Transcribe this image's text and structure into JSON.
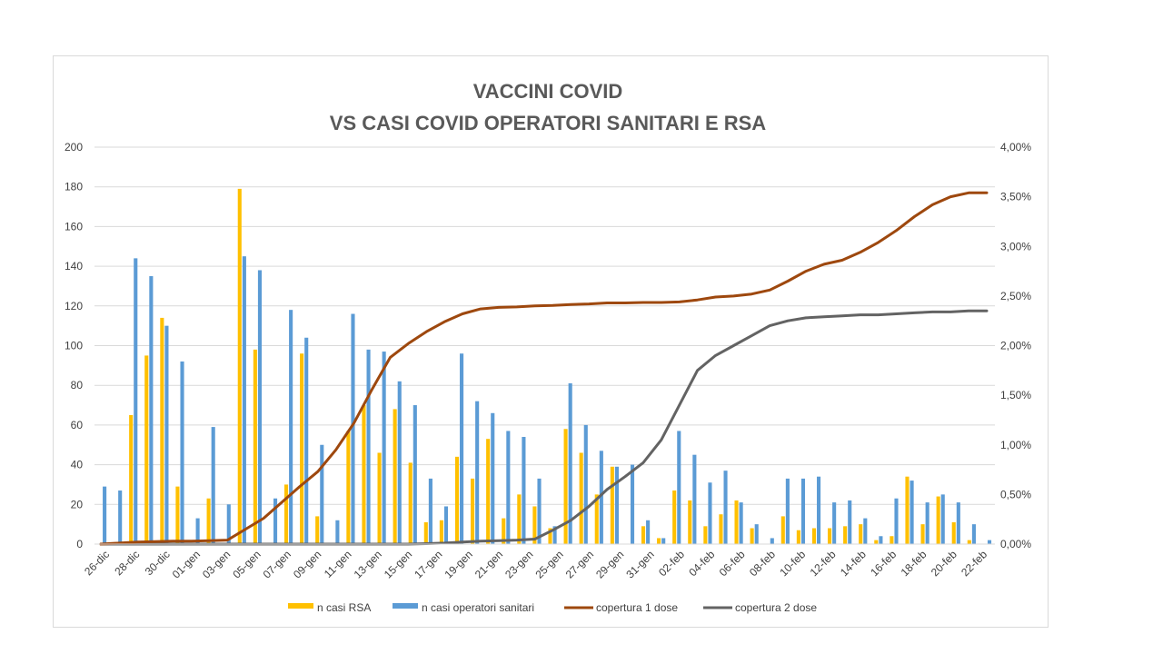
{
  "chart_data": {
    "type": "bar",
    "title_line1": "VACCINI COVID",
    "title_line2": "VS CASI COVID OPERATORI SANITARI  E  RSA",
    "x_tick_labels": [
      "26-dic",
      "28-dic",
      "30-dic",
      "01-gen",
      "03-gen",
      "05-gen",
      "07-gen",
      "09-gen",
      "11-gen",
      "13-gen",
      "15-gen",
      "17-gen",
      "19-gen",
      "21-gen",
      "23-gen",
      "25-gen",
      "27-gen",
      "29-gen",
      "31-gen",
      "02-feb",
      "04-feb",
      "06-feb",
      "08-feb",
      "10-feb",
      "12-feb",
      "14-feb",
      "16-feb",
      "18-feb",
      "20-feb",
      "22-feb"
    ],
    "y_left": {
      "ylim": [
        0,
        200
      ],
      "ticks": [
        "0",
        "20",
        "40",
        "60",
        "80",
        "100",
        "120",
        "140",
        "160",
        "180",
        "200"
      ]
    },
    "y_right": {
      "ylim": [
        0,
        4
      ],
      "ticks": [
        "0,00%",
        "0,50%",
        "1,00%",
        "1,50%",
        "2,00%",
        "2,50%",
        "3,00%",
        "3,50%",
        "4,00%"
      ]
    },
    "grid": true,
    "legend_position": "bottom",
    "colors": {
      "rsa": "#ffc000",
      "operatori": "#5b9bd5",
      "dose1": "#9e480e",
      "dose2": "#636363",
      "grid": "#d9d9d9",
      "frame": "#d9d9d9"
    },
    "series": [
      {
        "name": "n casi RSA",
        "kind": "bar",
        "values": [
          0,
          0,
          65,
          95,
          114,
          29,
          0,
          23,
          0,
          179,
          98,
          0,
          30,
          96,
          14,
          0,
          57,
          70,
          46,
          68,
          41,
          11,
          12,
          44,
          33,
          53,
          13,
          25,
          19,
          8,
          58,
          46,
          25,
          39,
          0,
          9,
          3,
          27,
          22,
          9,
          15,
          22,
          8,
          0,
          14,
          7,
          8,
          8,
          9,
          10,
          2,
          4,
          34,
          10,
          24,
          11,
          2,
          0
        ]
      },
      {
        "name": "n casi operatori sanitari",
        "kind": "bar",
        "values": [
          29,
          27,
          144,
          135,
          110,
          92,
          13,
          59,
          20,
          145,
          138,
          23,
          118,
          104,
          50,
          12,
          116,
          98,
          97,
          82,
          70,
          33,
          19,
          96,
          72,
          66,
          57,
          54,
          33,
          9,
          81,
          60,
          47,
          39,
          40,
          12,
          3,
          57,
          45,
          31,
          37,
          21,
          10,
          3,
          33,
          33,
          34,
          21,
          22,
          13,
          4,
          23,
          32,
          21,
          25,
          21,
          10,
          2
        ]
      },
      {
        "name": "copertura 1 dose",
        "kind": "line",
        "values": [
          0.0,
          0.01,
          0.02,
          0.025,
          0.03,
          0.03,
          0.035,
          0.04,
          0.15,
          0.26,
          0.42,
          0.58,
          0.73,
          0.95,
          1.22,
          1.56,
          1.88,
          2.02,
          2.14,
          2.24,
          2.32,
          2.37,
          2.385,
          2.39,
          2.4,
          2.405,
          2.415,
          2.42,
          2.43,
          2.43,
          2.435,
          2.435,
          2.44,
          2.46,
          2.49,
          2.5,
          2.52,
          2.56,
          2.65,
          2.75,
          2.82,
          2.86,
          2.94,
          3.04,
          3.16,
          3.3,
          3.42,
          3.5,
          3.54,
          3.54
        ]
      },
      {
        "name": "copertura 2 dose",
        "kind": "line",
        "values": [
          0,
          0,
          0,
          0,
          0,
          0,
          0,
          0,
          0,
          0,
          0,
          0,
          0,
          0,
          0,
          0,
          0,
          0,
          0.005,
          0.01,
          0.02,
          0.03,
          0.035,
          0.04,
          0.05,
          0.14,
          0.24,
          0.38,
          0.55,
          0.68,
          0.82,
          1.05,
          1.4,
          1.75,
          1.9,
          2.0,
          2.1,
          2.2,
          2.25,
          2.28,
          2.29,
          2.3,
          2.31,
          2.31,
          2.32,
          2.33,
          2.34,
          2.34,
          2.35,
          2.35
        ]
      }
    ]
  }
}
